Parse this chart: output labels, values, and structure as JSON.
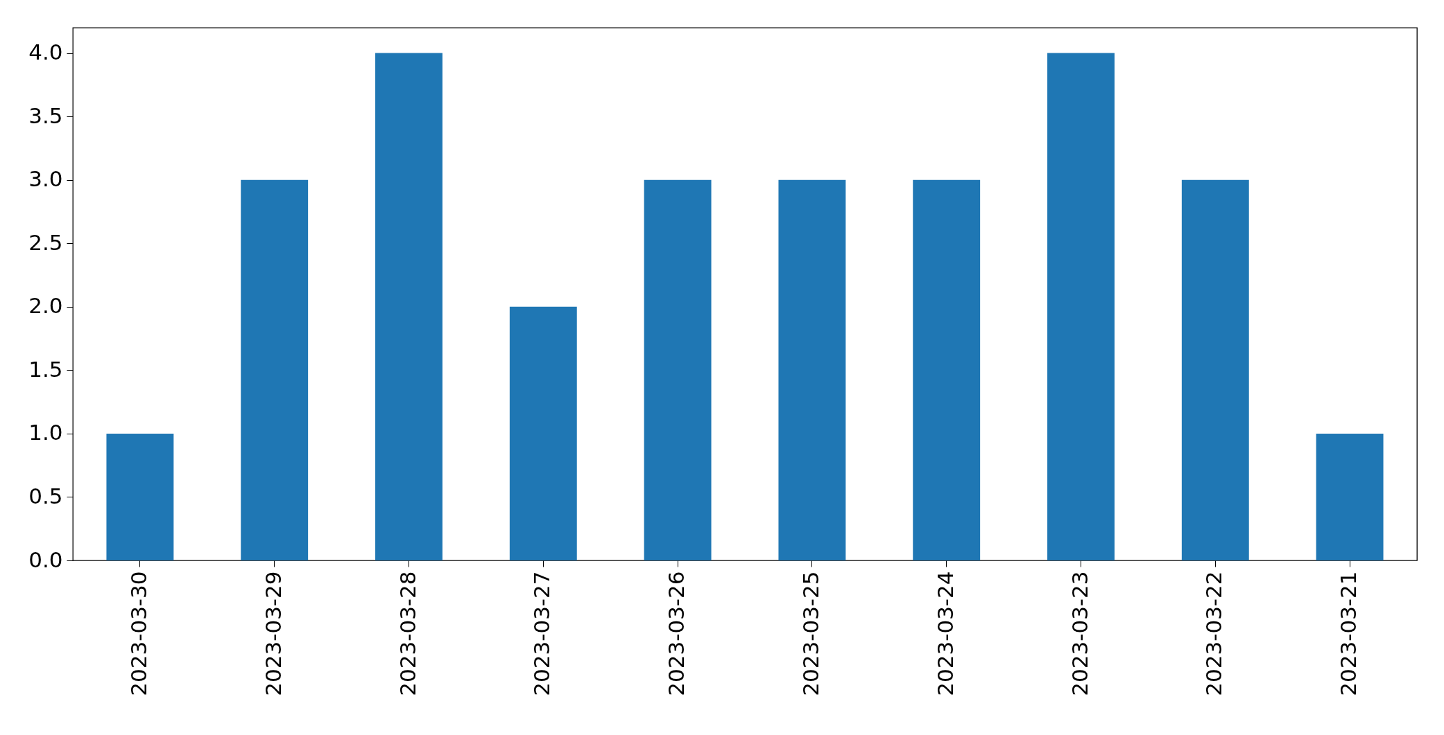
{
  "chart_data": {
    "type": "bar",
    "categories": [
      "2023-03-30",
      "2023-03-29",
      "2023-03-28",
      "2023-03-27",
      "2023-03-26",
      "2023-03-25",
      "2023-03-24",
      "2023-03-23",
      "2023-03-22",
      "2023-03-21"
    ],
    "values": [
      1,
      3,
      4,
      2,
      3,
      3,
      3,
      4,
      3,
      1
    ],
    "color": "#1f77b4",
    "ylim": [
      0,
      4.2
    ],
    "yticks": [
      {
        "value": 0,
        "label": "0.0"
      },
      0.5,
      {
        "value": 1,
        "label": "1.0"
      },
      1.5,
      {
        "value": 2,
        "label": "2.0"
      },
      2.5,
      {
        "value": 3,
        "label": "3.0"
      },
      3.5,
      {
        "value": 4,
        "label": "4.0"
      }
    ],
    "grid": false
  }
}
